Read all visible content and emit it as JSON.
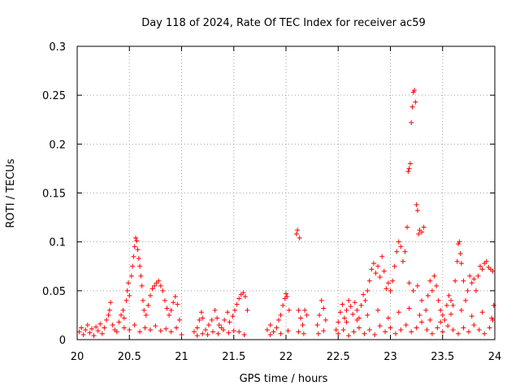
{
  "chart_data": {
    "type": "scatter",
    "title": "Day 118 of 2024, Rate Of TEC Index for receiver ac59",
    "xlabel": "GPS time / hours",
    "ylabel": "ROTI / TECUs",
    "xlim": [
      20,
      24
    ],
    "ylim": [
      0,
      0.3
    ],
    "grid": true,
    "marker": "+",
    "marker_color": "#ff0000",
    "x_ticks": [
      20,
      20.5,
      21,
      21.5,
      22,
      22.5,
      23,
      23.5,
      24
    ],
    "x_tick_labels": [
      "20",
      "20.5",
      "21",
      "21.5",
      "22",
      "22.5",
      "23",
      "23.5",
      "24"
    ],
    "y_ticks": [
      0,
      0.05,
      0.1,
      0.15,
      0.2,
      0.25,
      0.3
    ],
    "y_tick_labels": [
      "0",
      "0.05",
      "0.1",
      "0.15",
      "0.2",
      "0.25",
      "0.3"
    ],
    "series": [
      {
        "name": "ROTI",
        "points": [
          [
            20.02,
            0.008
          ],
          [
            20.04,
            0.012
          ],
          [
            20.06,
            0.005
          ],
          [
            20.08,
            0.01
          ],
          [
            20.1,
            0.015
          ],
          [
            20.12,
            0.007
          ],
          [
            20.14,
            0.011
          ],
          [
            20.16,
            0.004
          ],
          [
            20.18,
            0.013
          ],
          [
            20.2,
            0.009
          ],
          [
            20.22,
            0.016
          ],
          [
            20.24,
            0.006
          ],
          [
            20.26,
            0.012
          ],
          [
            20.28,
            0.02
          ],
          [
            20.3,
            0.025
          ],
          [
            20.31,
            0.03
          ],
          [
            20.32,
            0.038
          ],
          [
            20.34,
            0.015
          ],
          [
            20.36,
            0.01
          ],
          [
            20.38,
            0.008
          ],
          [
            20.4,
            0.018
          ],
          [
            20.42,
            0.025
          ],
          [
            20.44,
            0.03
          ],
          [
            20.45,
            0.022
          ],
          [
            20.47,
            0.04
          ],
          [
            20.48,
            0.05
          ],
          [
            20.49,
            0.058
          ],
          [
            20.5,
            0.045
          ],
          [
            20.52,
            0.065
          ],
          [
            20.53,
            0.075
          ],
          [
            20.54,
            0.085
          ],
          [
            20.55,
            0.095
          ],
          [
            20.56,
            0.104
          ],
          [
            20.57,
            0.101
          ],
          [
            20.58,
            0.092
          ],
          [
            20.59,
            0.083
          ],
          [
            20.6,
            0.075
          ],
          [
            20.61,
            0.065
          ],
          [
            20.62,
            0.055
          ],
          [
            20.63,
            0.04
          ],
          [
            20.64,
            0.03
          ],
          [
            20.66,
            0.025
          ],
          [
            20.68,
            0.035
          ],
          [
            20.7,
            0.045
          ],
          [
            20.72,
            0.052
          ],
          [
            20.74,
            0.055
          ],
          [
            20.76,
            0.058
          ],
          [
            20.78,
            0.06
          ],
          [
            20.8,
            0.055
          ],
          [
            20.82,
            0.05
          ],
          [
            20.84,
            0.04
          ],
          [
            20.86,
            0.032
          ],
          [
            20.88,
            0.025
          ],
          [
            20.9,
            0.03
          ],
          [
            20.92,
            0.038
          ],
          [
            20.94,
            0.044
          ],
          [
            20.96,
            0.036
          ],
          [
            20.98,
            0.02
          ],
          [
            20.45,
            0.012
          ],
          [
            20.5,
            0.01
          ],
          [
            20.55,
            0.015
          ],
          [
            20.6,
            0.008
          ],
          [
            20.65,
            0.012
          ],
          [
            20.7,
            0.01
          ],
          [
            20.75,
            0.014
          ],
          [
            20.8,
            0.009
          ],
          [
            20.85,
            0.011
          ],
          [
            20.9,
            0.008
          ],
          [
            20.95,
            0.012
          ],
          [
            21.0,
            0.005
          ],
          [
            21.12,
            0.008
          ],
          [
            21.15,
            0.012
          ],
          [
            21.17,
            0.02
          ],
          [
            21.19,
            0.028
          ],
          [
            21.2,
            0.022
          ],
          [
            21.23,
            0.01
          ],
          [
            21.26,
            0.015
          ],
          [
            21.29,
            0.02
          ],
          [
            21.32,
            0.03
          ],
          [
            21.34,
            0.022
          ],
          [
            21.36,
            0.015
          ],
          [
            21.38,
            0.012
          ],
          [
            21.41,
            0.02
          ],
          [
            21.44,
            0.028
          ],
          [
            21.46,
            0.018
          ],
          [
            21.49,
            0.024
          ],
          [
            21.51,
            0.03
          ],
          [
            21.53,
            0.036
          ],
          [
            21.55,
            0.042
          ],
          [
            21.57,
            0.046
          ],
          [
            21.59,
            0.048
          ],
          [
            21.61,
            0.044
          ],
          [
            21.63,
            0.03
          ],
          [
            21.15,
            0.004
          ],
          [
            21.2,
            0.006
          ],
          [
            21.25,
            0.005
          ],
          [
            21.3,
            0.008
          ],
          [
            21.35,
            0.006
          ],
          [
            21.4,
            0.01
          ],
          [
            21.45,
            0.007
          ],
          [
            21.5,
            0.009
          ],
          [
            21.55,
            0.008
          ],
          [
            21.6,
            0.005
          ],
          [
            21.82,
            0.01
          ],
          [
            21.85,
            0.015
          ],
          [
            21.88,
            0.008
          ],
          [
            21.91,
            0.012
          ],
          [
            21.93,
            0.02
          ],
          [
            21.95,
            0.025
          ],
          [
            21.97,
            0.035
          ],
          [
            21.99,
            0.042
          ],
          [
            22.0,
            0.047
          ],
          [
            22.01,
            0.044
          ],
          [
            22.03,
            0.03
          ],
          [
            21.85,
            0.005
          ],
          [
            21.95,
            0.006
          ],
          [
            22.02,
            0.009
          ],
          [
            22.1,
            0.108
          ],
          [
            22.11,
            0.112
          ],
          [
            22.13,
            0.104
          ],
          [
            22.12,
            0.03
          ],
          [
            22.14,
            0.022
          ],
          [
            22.16,
            0.015
          ],
          [
            22.18,
            0.03
          ],
          [
            22.2,
            0.025
          ],
          [
            22.12,
            0.008
          ],
          [
            22.17,
            0.006
          ],
          [
            22.3,
            0.015
          ],
          [
            22.32,
            0.025
          ],
          [
            22.34,
            0.04
          ],
          [
            22.36,
            0.032
          ],
          [
            22.38,
            0.02
          ],
          [
            22.31,
            0.006
          ],
          [
            22.36,
            0.009
          ],
          [
            22.48,
            0.01
          ],
          [
            22.5,
            0.018
          ],
          [
            22.52,
            0.028
          ],
          [
            22.54,
            0.036
          ],
          [
            22.56,
            0.022
          ],
          [
            22.58,
            0.03
          ],
          [
            22.6,
            0.04
          ],
          [
            22.62,
            0.034
          ],
          [
            22.64,
            0.026
          ],
          [
            22.66,
            0.038
          ],
          [
            22.68,
            0.03
          ],
          [
            22.7,
            0.022
          ],
          [
            22.72,
            0.035
          ],
          [
            22.74,
            0.046
          ],
          [
            22.76,
            0.04
          ],
          [
            22.78,
            0.05
          ],
          [
            22.8,
            0.06
          ],
          [
            22.82,
            0.072
          ],
          [
            22.84,
            0.078
          ],
          [
            22.86,
            0.068
          ],
          [
            22.88,
            0.075
          ],
          [
            22.9,
            0.064
          ],
          [
            22.92,
            0.085
          ],
          [
            22.94,
            0.07
          ],
          [
            22.96,
            0.052
          ],
          [
            22.98,
            0.058
          ],
          [
            23.0,
            0.05
          ],
          [
            23.02,
            0.06
          ],
          [
            23.04,
            0.075
          ],
          [
            23.06,
            0.09
          ],
          [
            23.08,
            0.1
          ],
          [
            23.1,
            0.095
          ],
          [
            23.12,
            0.08
          ],
          [
            23.14,
            0.09
          ],
          [
            23.16,
            0.115
          ],
          [
            23.17,
            0.172
          ],
          [
            23.18,
            0.175
          ],
          [
            23.19,
            0.18
          ],
          [
            23.2,
            0.222
          ],
          [
            23.21,
            0.238
          ],
          [
            23.22,
            0.253
          ],
          [
            23.23,
            0.255
          ],
          [
            23.24,
            0.243
          ],
          [
            23.25,
            0.138
          ],
          [
            23.26,
            0.132
          ],
          [
            23.27,
            0.108
          ],
          [
            23.28,
            0.112
          ],
          [
            23.3,
            0.11
          ],
          [
            23.32,
            0.115
          ],
          [
            23.18,
            0.058
          ],
          [
            23.22,
            0.05
          ],
          [
            23.26,
            0.055
          ],
          [
            23.3,
            0.04
          ],
          [
            23.34,
            0.03
          ],
          [
            23.36,
            0.045
          ],
          [
            23.38,
            0.06
          ],
          [
            23.4,
            0.05
          ],
          [
            23.42,
            0.065
          ],
          [
            23.44,
            0.055
          ],
          [
            23.46,
            0.04
          ],
          [
            23.48,
            0.03
          ],
          [
            23.5,
            0.025
          ],
          [
            23.52,
            0.02
          ],
          [
            23.54,
            0.035
          ],
          [
            23.56,
            0.045
          ],
          [
            23.58,
            0.04
          ],
          [
            23.6,
            0.035
          ],
          [
            23.62,
            0.06
          ],
          [
            23.64,
            0.08
          ],
          [
            23.65,
            0.098
          ],
          [
            23.66,
            0.1
          ],
          [
            23.67,
            0.088
          ],
          [
            23.68,
            0.078
          ],
          [
            23.7,
            0.06
          ],
          [
            23.72,
            0.04
          ],
          [
            23.74,
            0.05
          ],
          [
            23.76,
            0.065
          ],
          [
            23.78,
            0.058
          ],
          [
            23.8,
            0.062
          ],
          [
            23.82,
            0.05
          ],
          [
            23.84,
            0.065
          ],
          [
            23.86,
            0.075
          ],
          [
            23.88,
            0.072
          ],
          [
            23.9,
            0.078
          ],
          [
            23.92,
            0.08
          ],
          [
            23.94,
            0.074
          ],
          [
            23.96,
            0.072
          ],
          [
            23.98,
            0.07
          ],
          [
            23.99,
            0.035
          ],
          [
            22.5,
            0.006
          ],
          [
            22.55,
            0.01
          ],
          [
            22.6,
            0.004
          ],
          [
            22.65,
            0.008
          ],
          [
            22.7,
            0.012
          ],
          [
            22.75,
            0.006
          ],
          [
            22.8,
            0.01
          ],
          [
            22.85,
            0.005
          ],
          [
            22.9,
            0.014
          ],
          [
            22.95,
            0.008
          ],
          [
            23.0,
            0.012
          ],
          [
            23.05,
            0.006
          ],
          [
            23.1,
            0.01
          ],
          [
            23.15,
            0.015
          ],
          [
            23.2,
            0.008
          ],
          [
            23.25,
            0.012
          ],
          [
            23.3,
            0.018
          ],
          [
            23.35,
            0.01
          ],
          [
            23.4,
            0.006
          ],
          [
            23.45,
            0.012
          ],
          [
            23.5,
            0.008
          ],
          [
            23.55,
            0.014
          ],
          [
            23.6,
            0.01
          ],
          [
            23.65,
            0.006
          ],
          [
            23.7,
            0.012
          ],
          [
            23.75,
            0.008
          ],
          [
            23.8,
            0.015
          ],
          [
            23.85,
            0.01
          ],
          [
            23.9,
            0.006
          ],
          [
            23.95,
            0.012
          ],
          [
            23.98,
            0.02
          ],
          [
            22.58,
            0.018
          ],
          [
            22.68,
            0.02
          ],
          [
            22.78,
            0.025
          ],
          [
            22.88,
            0.03
          ],
          [
            22.98,
            0.022
          ],
          [
            23.08,
            0.028
          ],
          [
            23.18,
            0.032
          ],
          [
            23.28,
            0.025
          ],
          [
            23.38,
            0.02
          ],
          [
            23.48,
            0.018
          ],
          [
            23.58,
            0.026
          ],
          [
            23.68,
            0.03
          ],
          [
            23.78,
            0.024
          ],
          [
            23.88,
            0.028
          ],
          [
            23.97,
            0.022
          ]
        ]
      }
    ]
  }
}
